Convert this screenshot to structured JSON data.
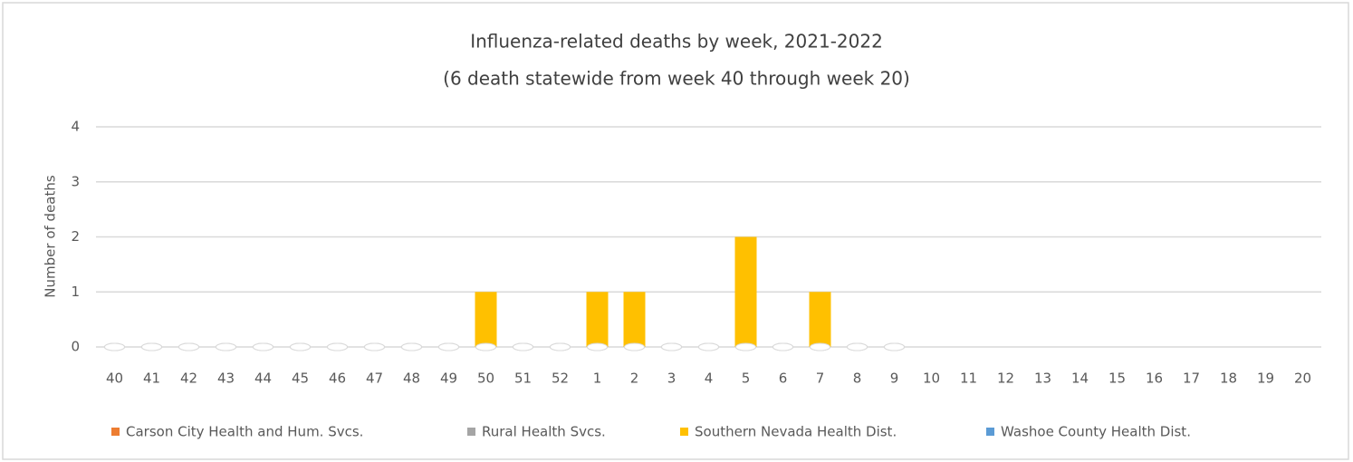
{
  "chart_data": {
    "type": "stacked-bar",
    "title": "Influenza-related deaths by week, 2021-2022",
    "subtitle": "(6 death statewide from week 40 through week 20)",
    "y_label": "Number of deaths",
    "categories": [
      "40",
      "41",
      "42",
      "43",
      "44",
      "45",
      "46",
      "47",
      "48",
      "49",
      "50",
      "51",
      "52",
      "1",
      "2",
      "3",
      "4",
      "5",
      "6",
      "7",
      "8",
      "9",
      "10",
      "11",
      "12",
      "13",
      "14",
      "15",
      "16",
      "17",
      "18",
      "19",
      "20"
    ],
    "series": [
      {
        "name": "Carson City Health and Hum. Svcs.",
        "color": "#ed7d31",
        "values": [
          0,
          0,
          0,
          0,
          0,
          0,
          0,
          0,
          0,
          0,
          0,
          0,
          0,
          0,
          0,
          0,
          0,
          0,
          0,
          0,
          0,
          0,
          null,
          null,
          null,
          null,
          null,
          null,
          null,
          null,
          null,
          null,
          null
        ]
      },
      {
        "name": "Rural Health Svcs.",
        "color": "#a5a5a5",
        "values": [
          0,
          0,
          0,
          0,
          0,
          0,
          0,
          0,
          0,
          0,
          0,
          0,
          0,
          0,
          0,
          0,
          0,
          0,
          0,
          0,
          0,
          0,
          null,
          null,
          null,
          null,
          null,
          null,
          null,
          null,
          null,
          null,
          null
        ]
      },
      {
        "name": "Southern Nevada Health Dist.",
        "color": "#ffc000",
        "values": [
          0,
          0,
          0,
          0,
          0,
          0,
          0,
          0,
          0,
          0,
          1,
          0,
          0,
          1,
          1,
          0,
          0,
          2,
          0,
          1,
          0,
          0,
          null,
          null,
          null,
          null,
          null,
          null,
          null,
          null,
          null,
          null,
          null
        ]
      },
      {
        "name": "Washoe County Health Dist.",
        "color": "#5b9bd5",
        "values": [
          0,
          0,
          0,
          0,
          0,
          0,
          0,
          0,
          0,
          0,
          0,
          0,
          0,
          0,
          0,
          0,
          0,
          0,
          0,
          0,
          0,
          0,
          null,
          null,
          null,
          null,
          null,
          null,
          null,
          null,
          null,
          null,
          null
        ]
      }
    ],
    "ylim": [
      0,
      4
    ],
    "yticks": [
      0,
      1,
      2,
      3,
      4
    ],
    "grid": true,
    "legend": "bottom"
  }
}
